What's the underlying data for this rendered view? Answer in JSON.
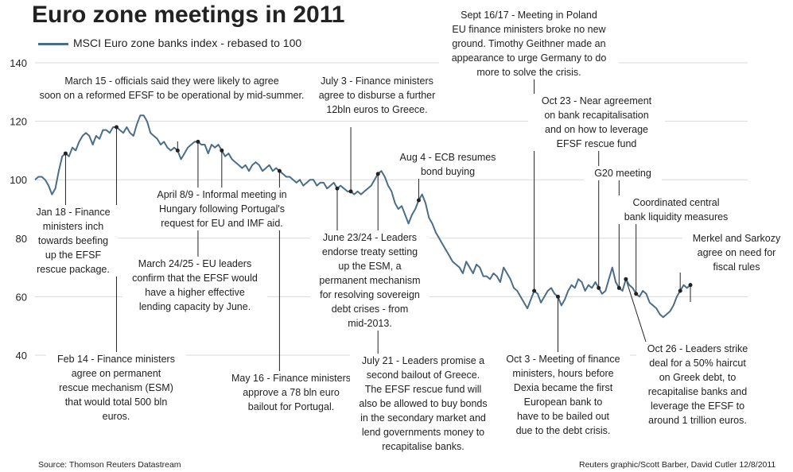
{
  "title": "Euro zone meetings in 2011",
  "legend_label": "MSCI Euro zone banks index - rebased to 100",
  "source": "Source: Thomson Reuters Datastream",
  "credit": "Reuters graphic/Scott Barber, David Cutler 12/8/2011",
  "colors": {
    "line": "#4a6e8a",
    "grid": "#d9d9d9",
    "leader": "#222222",
    "text": "#222222"
  },
  "chart_data": {
    "type": "line",
    "title": "Euro zone meetings in 2011",
    "ylabel": "",
    "xlabel": "",
    "ylim": [
      40,
      140
    ],
    "yticks": [
      40,
      60,
      80,
      100,
      120,
      140
    ],
    "grid": true,
    "legend_placement": "top-left",
    "series": [
      {
        "name": "MSCI Euro zone banks index - rebased to 100",
        "x_unit": "trading day",
        "values": [
          100,
          101,
          101,
          100,
          98,
          95,
          97,
          103,
          108,
          109,
          108,
          111,
          110,
          113,
          115,
          116,
          115,
          112,
          115,
          114,
          117,
          117,
          116,
          118,
          118,
          117,
          116,
          118,
          116,
          115,
          119,
          122,
          122,
          120,
          116,
          115,
          114,
          112,
          113,
          111,
          110,
          111,
          110,
          107,
          109,
          111,
          112,
          113,
          113,
          112,
          112,
          109,
          112,
          111,
          112,
          110,
          108,
          109,
          107,
          106,
          105,
          104,
          105,
          103,
          105,
          106,
          105,
          103,
          104,
          105,
          103,
          104,
          103,
          102,
          101,
          101,
          100,
          99,
          100,
          98,
          99,
          100,
          100,
          98,
          99,
          99,
          97,
          98,
          99,
          97,
          98,
          97,
          96,
          96,
          95,
          96,
          95,
          96,
          97,
          98,
          100,
          102,
          103,
          101,
          98,
          96,
          92,
          90,
          91,
          88,
          85,
          88,
          90,
          93,
          95,
          92,
          87,
          85,
          82,
          80,
          78,
          76,
          74,
          72,
          71,
          70,
          68,
          72,
          70,
          68,
          71,
          70,
          67,
          67,
          66,
          68,
          67,
          65,
          70,
          68,
          66,
          63,
          62,
          60,
          58,
          56,
          59,
          62,
          61,
          58,
          60,
          62,
          63,
          61,
          60,
          57,
          59,
          62,
          64,
          63,
          66,
          65,
          62,
          64,
          63,
          65,
          63,
          61,
          62,
          66,
          70,
          65,
          63,
          62,
          66,
          64,
          63,
          61,
          60,
          62,
          61,
          58,
          57,
          56,
          54,
          53,
          54,
          55,
          57,
          60,
          62,
          64,
          63,
          64
        ]
      }
    ]
  },
  "annotations": [
    {
      "id": "jan18",
      "text": "Jan 18 - Finance\nministers inch\ntowards beefing\nup the EFSF\nrescue package."
    },
    {
      "id": "feb14",
      "text": "Feb 14 - Finance ministers\nagree on permanent\nrescue mechanism (ESM)\nthat would total 500 bln\neuros."
    },
    {
      "id": "mar15",
      "text": "March 15 - officials said they were likely to agree\nsoon on a reformed EFSF to be operational by mid-summer."
    },
    {
      "id": "mar2425",
      "text": "March 24/25 - EU leaders\nconfirm that the EFSF would\nhave a higher effective\nlending capacity by June."
    },
    {
      "id": "apr89",
      "text": "April 8/9 - Informal meeting in\nHungary following Portugal's\nrequest for EU and IMF aid."
    },
    {
      "id": "may16",
      "text": "May 16 - Finance ministers\napprove a 78 bln euro\nbailout for Portugal."
    },
    {
      "id": "jun2324",
      "text": "June 23/24 - Leaders\nendorse treaty setting\nup the ESM, a\npermanent mechanism\nfor resolving sovereign\ndebt crises - from\nmid-2013."
    },
    {
      "id": "jul3",
      "text": "July 3 - Finance ministers\nagree to disburse a further\n12bln euros to Greece."
    },
    {
      "id": "jul21",
      "text": "July 21 - Leaders promise a\nsecond bailout of Greece.\nThe EFSF rescue fund will\nalso be allowed to buy bonds\nin the secondary market and\nlend governments money to\nrecapitalise banks."
    },
    {
      "id": "aug4",
      "text": "Aug 4 - ECB resumes\nbond buying"
    },
    {
      "id": "sep1617",
      "text": "Sept 16/17 - Meeting in Poland\nEU finance ministers broke no new\nground. Timothy Geithner made an\nappearance to urge Germany to do\nmore to solve the crisis."
    },
    {
      "id": "oct3",
      "text": "Oct 3 - Meeting of finance\nministers, hours before\nDexia became the first\nEuropean bank to\nhave to be bailed out\ndue to the debt crisis."
    },
    {
      "id": "oct23",
      "text": "Oct 23 - Near agreement\non bank recapitalisation\nand on how to leverage\nEFSF rescue fund"
    },
    {
      "id": "g20",
      "text": "G20 meeting"
    },
    {
      "id": "coord",
      "text": "Coordinated central\nbank liquidity measures"
    },
    {
      "id": "oct26",
      "text": "Oct 26 - Leaders strike\ndeal for a 50% haircut\non Greek debt, to\nrecapitalise banks and\nleverage the EFSF to\naround 1 trillion euros."
    },
    {
      "id": "merkel",
      "text": "Merkel and Sarkozy\nagree on need for\nfiscal rules"
    }
  ]
}
